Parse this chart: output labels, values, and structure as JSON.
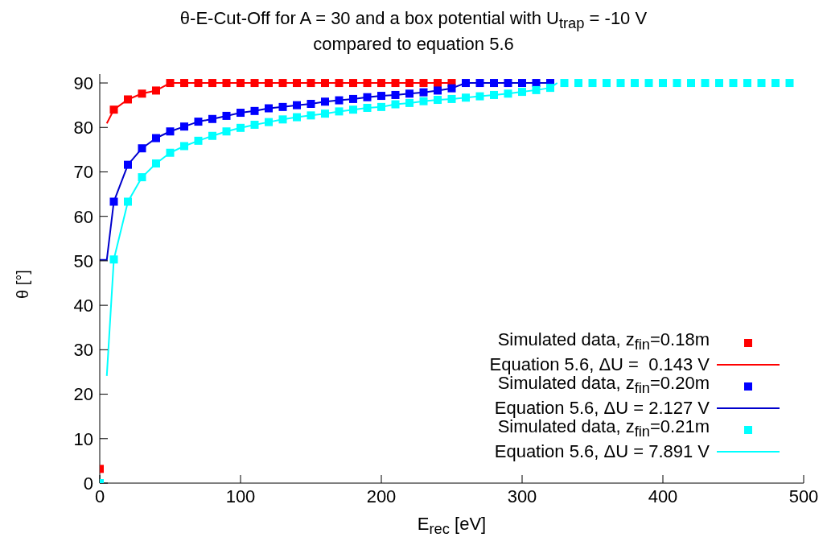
{
  "chart_data": {
    "type": "scatter",
    "title": "θ-E-Cut-Off for A = 30 and a box potential with U$_{trap}$ = -10 V",
    "subtitle": "compared to equation 5.6",
    "xlabel": "E$_{rec}$ [eV]",
    "ylabel": "θ [°]",
    "xlim": [
      0,
      500
    ],
    "xticks": [
      0,
      100,
      200,
      300,
      400,
      500
    ],
    "ylim": [
      0,
      92
    ],
    "yticks": [
      0,
      10,
      20,
      30,
      40,
      50,
      60,
      70,
      80,
      90
    ],
    "grid": false,
    "legend": "bottom right",
    "marker": "square",
    "series": [
      {
        "name": "Simulated data, z$_{fin}$=0.18m",
        "color": "#ff0000",
        "x": [
          0,
          10,
          20,
          30,
          40,
          50,
          60,
          70,
          80,
          90,
          100,
          110,
          120,
          130,
          140,
          150,
          160,
          170,
          180,
          190,
          200,
          210,
          220,
          230,
          240,
          250
        ],
        "values": [
          3.2,
          84.0,
          86.3,
          87.6,
          88.3,
          90,
          90,
          90,
          90,
          90,
          90,
          90,
          90,
          90,
          90,
          90,
          90,
          90,
          90,
          90,
          90,
          90,
          90,
          90,
          90,
          90
        ]
      },
      {
        "name": "Equation 5.6, ΔU =  0.143 V",
        "type": "line",
        "marker": "none",
        "color": "#ff0000",
        "x": [
          5,
          10,
          20,
          30,
          40,
          50,
          250
        ],
        "values": [
          80.9,
          84.0,
          86.3,
          87.6,
          88.3,
          90,
          90
        ]
      },
      {
        "name": "Simulated data, z$_{fin}$=0.20m",
        "color": "#0000ff",
        "x": [
          10,
          20,
          30,
          40,
          50,
          60,
          70,
          80,
          90,
          100,
          110,
          120,
          130,
          140,
          150,
          160,
          170,
          180,
          190,
          200,
          210,
          220,
          230,
          240,
          250,
          260,
          270,
          280,
          290,
          300,
          310,
          320
        ],
        "values": [
          63.3,
          71.6,
          75.3,
          77.6,
          79.1,
          80.2,
          81.3,
          81.9,
          82.6,
          83.3,
          83.7,
          84.3,
          84.6,
          85.0,
          85.3,
          85.8,
          86.1,
          86.4,
          86.8,
          87.1,
          87.3,
          87.6,
          87.9,
          88.3,
          88.8,
          90,
          90,
          90,
          90,
          90,
          90,
          90
        ]
      },
      {
        "name": "Equation 5.6, ΔU = 2.127 V",
        "type": "line",
        "marker": "none",
        "color": "#0000cc",
        "x": [
          0,
          5,
          10,
          20,
          30,
          40,
          50,
          60,
          70,
          80,
          90,
          100,
          110,
          120,
          130,
          140,
          150,
          160,
          170,
          180,
          190,
          200,
          210,
          220,
          230,
          240,
          250,
          260,
          320
        ],
        "values": [
          50.2,
          50.2,
          63.3,
          71.6,
          75.3,
          77.6,
          79.1,
          80.2,
          81.3,
          81.9,
          82.6,
          83.3,
          83.7,
          84.3,
          84.6,
          85.0,
          85.3,
          85.8,
          86.1,
          86.4,
          86.8,
          87.1,
          87.3,
          87.6,
          87.9,
          88.3,
          88.8,
          90,
          90
        ]
      },
      {
        "name": "Simulated data, z$_{fin}$=0.21m",
        "color": "#00ffff",
        "x": [
          0,
          10,
          20,
          30,
          40,
          50,
          60,
          70,
          80,
          90,
          100,
          110,
          120,
          130,
          140,
          150,
          160,
          170,
          180,
          190,
          200,
          210,
          220,
          230,
          240,
          250,
          260,
          270,
          280,
          290,
          300,
          310,
          320,
          330,
          340,
          350,
          360,
          370,
          380,
          390,
          400,
          410,
          420,
          430,
          440,
          450,
          460,
          470,
          480,
          490
        ],
        "values": [
          0,
          50.3,
          63.3,
          68.8,
          71.9,
          74.3,
          75.8,
          77.0,
          78.1,
          79.1,
          79.9,
          80.6,
          81.2,
          81.8,
          82.3,
          82.7,
          83.1,
          83.6,
          84.0,
          84.4,
          84.6,
          85.2,
          85.5,
          85.9,
          86.2,
          86.4,
          86.7,
          87.0,
          87.3,
          87.6,
          88.0,
          88.4,
          88.9,
          90,
          90,
          90,
          90,
          90,
          90,
          90,
          90,
          90,
          90,
          90,
          90,
          90,
          90,
          90,
          90,
          90
        ]
      },
      {
        "name": "Equation 5.6, ΔU = 7.891 V",
        "type": "line",
        "marker": "none",
        "color": "#00ffff",
        "x": [
          5,
          10,
          20,
          30,
          40,
          50,
          60,
          70,
          80,
          90,
          100,
          110,
          120,
          130,
          140,
          150,
          160,
          170,
          180,
          190,
          200,
          210,
          220,
          230,
          240,
          250,
          260,
          270,
          280,
          290,
          300,
          310,
          320,
          325
        ],
        "values": [
          24.1,
          50.3,
          63.3,
          68.8,
          71.9,
          74.3,
          75.8,
          77.0,
          78.1,
          79.1,
          79.9,
          80.6,
          81.2,
          81.8,
          82.3,
          82.7,
          83.1,
          83.6,
          84.0,
          84.4,
          84.6,
          85.2,
          85.5,
          85.9,
          86.2,
          86.4,
          86.7,
          87.0,
          87.3,
          87.6,
          88.0,
          88.4,
          88.9,
          90
        ]
      }
    ]
  }
}
